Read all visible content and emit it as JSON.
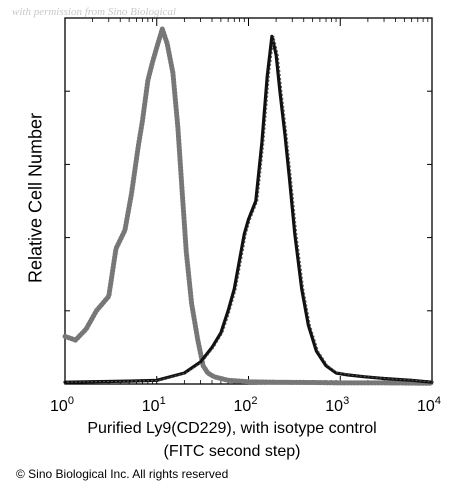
{
  "watermark": "with permission from Sino Biological",
  "copyright": "© Sino Biological Inc. All rights reserved",
  "chart_data": {
    "type": "line",
    "title": "",
    "xlabel_line1": "Purified Ly9(CD229), with isotype control",
    "xlabel_line2": "(FITC second step)",
    "ylabel": "Relative Cell Number",
    "x_scale": "log",
    "xlim": [
      1,
      10000
    ],
    "ylim": [
      0,
      100
    ],
    "x_ticks": [
      {
        "base": "10",
        "exp": "0"
      },
      {
        "base": "10",
        "exp": "1"
      },
      {
        "base": "10",
        "exp": "2"
      },
      {
        "base": "10",
        "exp": "3"
      },
      {
        "base": "10",
        "exp": "4"
      }
    ],
    "grid": false,
    "legend": "none",
    "series": [
      {
        "style": "dotted-gray",
        "color": "#777777",
        "x": [
          1.0,
          1.3,
          1.7,
          2.2,
          3.0,
          3.6,
          4.5,
          5.3,
          6.3,
          7.0,
          8.0,
          9.0,
          10.0,
          11.5,
          13.0,
          15.0,
          17.0,
          19.0,
          21.0,
          24.0,
          28.0,
          32.0,
          36.0,
          42.0,
          50.0,
          60.0,
          80.0,
          100.0,
          200.0,
          500.0,
          1000.0,
          3000.0,
          10000.0
        ],
        "y": [
          13,
          12,
          15,
          20,
          24,
          37,
          42,
          52,
          65,
          72,
          83,
          88,
          92,
          97,
          93,
          85,
          70,
          52,
          36,
          22,
          12,
          5,
          3,
          2,
          1.5,
          1,
          0.8,
          0.6,
          0.5,
          0.4,
          0.3,
          0.3,
          0.2
        ]
      },
      {
        "style": "solid-black",
        "color": "#111111",
        "x": [
          1.0,
          5.0,
          10.0,
          20.0,
          30.0,
          40.0,
          50.0,
          60.0,
          70.0,
          80.0,
          90.0,
          100.0,
          120.0,
          140.0,
          160.0,
          180.0,
          200.0,
          220.0,
          250.0,
          280.0,
          320.0,
          380.0,
          450.0,
          550.0,
          700.0,
          900.0,
          1200.0,
          1800.0,
          3000.0,
          6000.0,
          10000.0
        ],
        "y": [
          0.5,
          0.8,
          1,
          3,
          6,
          10,
          14,
          20,
          26,
          34,
          41,
          45,
          50,
          66,
          84,
          95,
          90,
          80,
          68,
          56,
          41,
          26,
          16,
          9,
          5,
          3,
          2.5,
          2,
          1.5,
          1,
          0.5
        ]
      }
    ]
  }
}
